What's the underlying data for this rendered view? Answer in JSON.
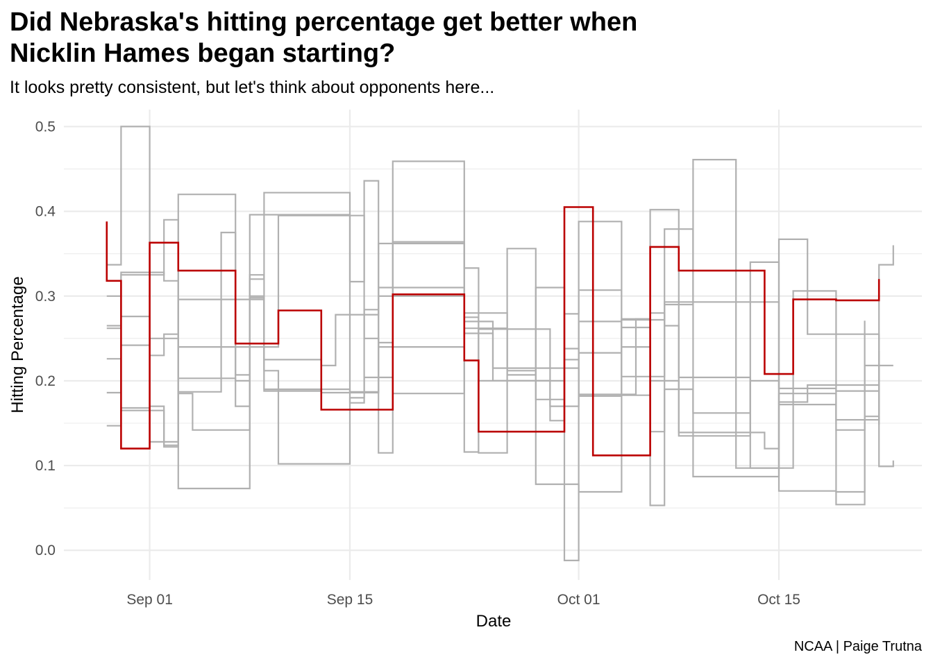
{
  "chart_data": {
    "type": "line",
    "title": "Did Nebraska's hitting percentage get better when\nNicklin Hames began starting?",
    "subtitle": "It looks pretty consistent, but let's think about opponents here...",
    "caption": "NCAA | Paige Trutna",
    "xlabel": "Date",
    "ylabel": "Hitting Percentage",
    "x_type": "date",
    "xlim": [
      "2019-08-26",
      "2019-10-25"
    ],
    "ylim": [
      -0.035,
      0.52
    ],
    "x_ticks": [
      {
        "date": "2019-09-01",
        "label": "Sep 01"
      },
      {
        "date": "2019-09-15",
        "label": "Sep 15"
      },
      {
        "date": "2019-10-01",
        "label": "Oct 01"
      },
      {
        "date": "2019-10-15",
        "label": "Oct 15"
      }
    ],
    "y_ticks": [
      0.0,
      0.1,
      0.2,
      0.3,
      0.4,
      0.5
    ],
    "y_tick_labels": [
      "0.0",
      "0.1",
      "0.2",
      "0.3",
      "0.4",
      "0.5"
    ],
    "grid": true,
    "step": "hv",
    "colors": {
      "highlight": "#bb0000",
      "other": "#b0b0b0",
      "grid": "#ebebeb"
    },
    "series": [
      {
        "highlight": true,
        "points": [
          [
            "2019-08-29",
            0.388
          ],
          [
            "2019-08-29",
            0.318
          ],
          [
            "2019-08-30",
            0.12
          ],
          [
            "2019-09-01",
            0.363
          ],
          [
            "2019-09-03",
            0.33
          ],
          [
            "2019-09-07",
            0.244
          ],
          [
            "2019-09-10",
            0.283
          ],
          [
            "2019-09-13",
            0.166
          ],
          [
            "2019-09-18",
            0.302
          ],
          [
            "2019-09-23",
            0.224
          ],
          [
            "2019-09-24",
            0.14
          ],
          [
            "2019-09-30",
            0.405
          ],
          [
            "2019-10-02",
            0.112
          ],
          [
            "2019-10-06",
            0.358
          ],
          [
            "2019-10-08",
            0.33
          ],
          [
            "2019-10-14",
            0.208
          ],
          [
            "2019-10-16",
            0.296
          ],
          [
            "2019-10-19",
            0.295
          ],
          [
            "2019-10-22",
            0.32
          ]
        ]
      },
      {
        "highlight": false,
        "points": [
          [
            "2019-08-29",
            0.337
          ],
          [
            "2019-08-30",
            0.5
          ],
          [
            "2019-09-01",
            0.5
          ],
          [
            "2019-09-01",
            0.128
          ],
          [
            "2019-09-03",
            0.42
          ],
          [
            "2019-09-07",
            0.17
          ],
          [
            "2019-09-08",
            0.396
          ],
          [
            "2019-09-15",
            0.317
          ],
          [
            "2019-09-16",
            0.436
          ],
          [
            "2019-09-17",
            0.115
          ],
          [
            "2019-09-18",
            0.364
          ],
          [
            "2019-09-23",
            0.116
          ],
          [
            "2019-09-24",
            0.261
          ],
          [
            "2019-09-29",
            0.153
          ],
          [
            "2019-09-30",
            0.238
          ],
          [
            "2019-10-01",
            0.184
          ],
          [
            "2019-10-05",
            0.273
          ],
          [
            "2019-10-06",
            0.402
          ],
          [
            "2019-10-08",
            0.204
          ],
          [
            "2019-10-13",
            0.097
          ],
          [
            "2019-10-16",
            0.306
          ],
          [
            "2019-10-19",
            0.154
          ],
          [
            "2019-10-22",
            0.337
          ],
          [
            "2019-10-23",
            0.36
          ]
        ]
      },
      {
        "highlight": false,
        "points": [
          [
            "2019-08-29",
            0.262
          ],
          [
            "2019-08-30",
            0.325
          ],
          [
            "2019-09-01",
            0.325
          ],
          [
            "2019-09-02",
            0.39
          ],
          [
            "2019-09-03",
            0.073
          ],
          [
            "2019-09-07",
            0.073
          ],
          [
            "2019-09-08",
            0.325
          ],
          [
            "2019-09-09",
            0.19
          ],
          [
            "2019-09-15",
            0.174
          ],
          [
            "2019-09-16",
            0.204
          ],
          [
            "2019-09-18",
            0.459
          ],
          [
            "2019-09-23",
            0.333
          ],
          [
            "2019-09-24",
            0.115
          ],
          [
            "2019-09-26",
            0.356
          ],
          [
            "2019-09-28",
            0.078
          ],
          [
            "2019-10-01",
            0.069
          ],
          [
            "2019-10-04",
            0.273
          ],
          [
            "2019-10-06",
            0.053
          ],
          [
            "2019-10-07",
            0.29
          ],
          [
            "2019-10-09",
            0.461
          ],
          [
            "2019-10-12",
            0.097
          ],
          [
            "2019-10-15",
            0.367
          ],
          [
            "2019-10-17",
            0.255
          ],
          [
            "2019-10-22",
            0.16
          ]
        ]
      },
      {
        "highlight": false,
        "points": [
          [
            "2019-08-29",
            0.186
          ],
          [
            "2019-08-30",
            0.242
          ],
          [
            "2019-09-01",
            0.25
          ],
          [
            "2019-09-03",
            0.187
          ],
          [
            "2019-09-06",
            0.375
          ],
          [
            "2019-09-07",
            0.207
          ],
          [
            "2019-09-08",
            0.32
          ],
          [
            "2019-09-09",
            0.422
          ],
          [
            "2019-09-14",
            0.422
          ],
          [
            "2019-09-15",
            0.186
          ],
          [
            "2019-09-17",
            0.245
          ],
          [
            "2019-09-18",
            0.185
          ],
          [
            "2019-09-23",
            0.28
          ],
          [
            "2019-09-26",
            0.207
          ],
          [
            "2019-09-28",
            0.31
          ],
          [
            "2019-09-30",
            -0.012
          ],
          [
            "2019-10-01",
            0.307
          ],
          [
            "2019-10-04",
            0.205
          ],
          [
            "2019-10-07",
            0.379
          ],
          [
            "2019-10-09",
            0.087
          ],
          [
            "2019-10-15",
            0.175
          ],
          [
            "2019-10-17",
            0.195
          ],
          [
            "2019-10-22",
            0.099
          ],
          [
            "2019-10-23",
            0.106
          ]
        ]
      },
      {
        "highlight": false,
        "points": [
          [
            "2019-08-29",
            0.226
          ],
          [
            "2019-08-30",
            0.168
          ],
          [
            "2019-09-01",
            0.17
          ],
          [
            "2019-09-02",
            0.122
          ],
          [
            "2019-09-03",
            0.185
          ],
          [
            "2019-09-04",
            0.142
          ],
          [
            "2019-09-07",
            0.142
          ],
          [
            "2019-09-08",
            0.3
          ],
          [
            "2019-09-09",
            0.188
          ],
          [
            "2019-09-13",
            0.186
          ],
          [
            "2019-09-15",
            0.187
          ],
          [
            "2019-09-17",
            0.362
          ],
          [
            "2019-09-23",
            0.27
          ],
          [
            "2019-09-25",
            0.215
          ],
          [
            "2019-09-30",
            0.279
          ],
          [
            "2019-10-01",
            0.388
          ],
          [
            "2019-10-04",
            0.183
          ],
          [
            "2019-10-06",
            0.28
          ],
          [
            "2019-10-07",
            0.265
          ],
          [
            "2019-10-08",
            0.135
          ],
          [
            "2019-10-13",
            0.34
          ],
          [
            "2019-10-15",
            0.191
          ],
          [
            "2019-10-19",
            0.188
          ],
          [
            "2019-10-22",
            0.235
          ]
        ]
      },
      {
        "highlight": false,
        "points": [
          [
            "2019-08-29",
            0.147
          ],
          [
            "2019-08-30",
            0.165
          ],
          [
            "2019-09-01",
            0.165
          ],
          [
            "2019-09-02",
            0.124
          ],
          [
            "2019-09-03",
            0.296
          ],
          [
            "2019-09-08",
            0.296
          ],
          [
            "2019-09-09",
            0.212
          ],
          [
            "2019-09-10",
            0.102
          ],
          [
            "2019-09-14",
            0.102
          ],
          [
            "2019-09-15",
            0.18
          ],
          [
            "2019-09-16",
            0.284
          ],
          [
            "2019-09-17",
            0.31
          ],
          [
            "2019-09-23",
            0.256
          ],
          [
            "2019-09-25",
            0.2
          ],
          [
            "2019-09-29",
            0.17
          ],
          [
            "2019-10-01",
            0.27
          ],
          [
            "2019-10-04",
            0.24
          ],
          [
            "2019-10-06",
            0.14
          ],
          [
            "2019-10-07",
            0.19
          ],
          [
            "2019-10-09",
            0.162
          ],
          [
            "2019-10-13",
            0.2
          ],
          [
            "2019-10-15",
            0.07
          ],
          [
            "2019-10-19",
            0.054
          ],
          [
            "2019-10-21",
            0.271
          ]
        ]
      },
      {
        "highlight": false,
        "points": [
          [
            "2019-08-29",
            0.265
          ],
          [
            "2019-08-30",
            0.328
          ],
          [
            "2019-09-01",
            0.328
          ],
          [
            "2019-09-02",
            0.318
          ],
          [
            "2019-09-03",
            0.24
          ],
          [
            "2019-09-09",
            0.24
          ],
          [
            "2019-09-10",
            0.395
          ],
          [
            "2019-09-15",
            0.395
          ],
          [
            "2019-09-16",
            0.25
          ],
          [
            "2019-09-17",
            0.24
          ],
          [
            "2019-09-23",
            0.275
          ],
          [
            "2019-09-24",
            0.2
          ],
          [
            "2019-09-30",
            0.225
          ],
          [
            "2019-10-01",
            0.233
          ],
          [
            "2019-10-04",
            0.263
          ],
          [
            "2019-10-06",
            0.2
          ],
          [
            "2019-10-08",
            0.139
          ],
          [
            "2019-10-14",
            0.12
          ],
          [
            "2019-10-15",
            0.185
          ],
          [
            "2019-10-19",
            0.069
          ],
          [
            "2019-10-21",
            0.158
          ],
          [
            "2019-10-22",
            0.148
          ]
        ]
      },
      {
        "highlight": false,
        "points": [
          [
            "2019-08-29",
            0.3
          ],
          [
            "2019-08-30",
            0.276
          ],
          [
            "2019-09-01",
            0.23
          ],
          [
            "2019-09-02",
            0.255
          ],
          [
            "2019-09-03",
            0.203
          ],
          [
            "2019-09-07",
            0.2
          ],
          [
            "2019-09-08",
            0.298
          ],
          [
            "2019-09-09",
            0.225
          ],
          [
            "2019-09-13",
            0.218
          ],
          [
            "2019-09-14",
            0.278
          ],
          [
            "2019-09-17",
            0.3
          ],
          [
            "2019-09-23",
            0.262
          ],
          [
            "2019-09-26",
            0.212
          ],
          [
            "2019-09-28",
            0.178
          ],
          [
            "2019-09-30",
            0.215
          ],
          [
            "2019-10-01",
            0.182
          ],
          [
            "2019-10-04",
            0.272
          ],
          [
            "2019-10-07",
            0.293
          ],
          [
            "2019-10-13",
            0.293
          ],
          [
            "2019-10-15",
            0.172
          ],
          [
            "2019-10-19",
            0.142
          ],
          [
            "2019-10-21",
            0.218
          ],
          [
            "2019-10-23",
            0.218
          ]
        ]
      }
    ]
  }
}
